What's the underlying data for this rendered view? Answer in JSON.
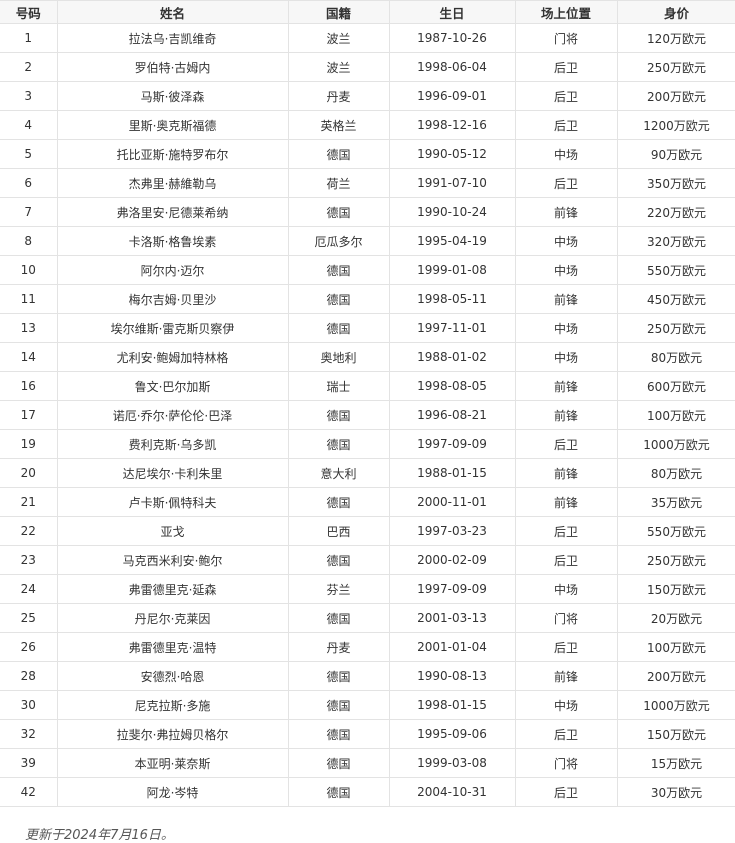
{
  "table": {
    "headers": [
      "号码",
      "姓名",
      "国籍",
      "生日",
      "场上位置",
      "身价"
    ],
    "rows": [
      [
        "1",
        "拉法乌·吉凯维奇",
        "波兰",
        "1987-10-26",
        "门将",
        "120万欧元"
      ],
      [
        "2",
        "罗伯特·古姆内",
        "波兰",
        "1998-06-04",
        "后卫",
        "250万欧元"
      ],
      [
        "3",
        "马斯·彼泽森",
        "丹麦",
        "1996-09-01",
        "后卫",
        "200万欧元"
      ],
      [
        "4",
        "里斯·奥克斯福德",
        "英格兰",
        "1998-12-16",
        "后卫",
        "1200万欧元"
      ],
      [
        "5",
        "托比亚斯·施特罗布尔",
        "德国",
        "1990-05-12",
        "中场",
        "90万欧元"
      ],
      [
        "6",
        "杰弗里·赫維勒乌",
        "荷兰",
        "1991-07-10",
        "后卫",
        "350万欧元"
      ],
      [
        "7",
        "弗洛里安·尼德莱希纳",
        "德国",
        "1990-10-24",
        "前锋",
        "220万欧元"
      ],
      [
        "8",
        "卡洛斯·格鲁埃素",
        "厄瓜多尔",
        "1995-04-19",
        "中场",
        "320万欧元"
      ],
      [
        "10",
        "阿尔内·迈尔",
        "德国",
        "1999-01-08",
        "中场",
        "550万欧元"
      ],
      [
        "11",
        "梅尔吉姆·贝里沙",
        "德国",
        "1998-05-11",
        "前锋",
        "450万欧元"
      ],
      [
        "13",
        "埃尔维斯·雷克斯贝察伊",
        "德国",
        "1997-11-01",
        "中场",
        "250万欧元"
      ],
      [
        "14",
        "尤利安·鲍姆加特林格",
        "奥地利",
        "1988-01-02",
        "中场",
        "80万欧元"
      ],
      [
        "16",
        "鲁文·巴尔加斯",
        "瑞士",
        "1998-08-05",
        "前锋",
        "600万欧元"
      ],
      [
        "17",
        "诺厄·乔尔·萨伦伦·巴泽",
        "德国",
        "1996-08-21",
        "前锋",
        "100万欧元"
      ],
      [
        "19",
        "费利克斯·乌多凯",
        "德国",
        "1997-09-09",
        "后卫",
        "1000万欧元"
      ],
      [
        "20",
        "达尼埃尔·卡利朱里",
        "意大利",
        "1988-01-15",
        "前锋",
        "80万欧元"
      ],
      [
        "21",
        "卢卡斯·佩特科夫",
        "德国",
        "2000-11-01",
        "前锋",
        "35万欧元"
      ],
      [
        "22",
        "亚戈",
        "巴西",
        "1997-03-23",
        "后卫",
        "550万欧元"
      ],
      [
        "23",
        "马克西米利安·鲍尔",
        "德国",
        "2000-02-09",
        "后卫",
        "250万欧元"
      ],
      [
        "24",
        "弗雷德里克·延森",
        "芬兰",
        "1997-09-09",
        "中场",
        "150万欧元"
      ],
      [
        "25",
        "丹尼尔·克莱因",
        "德国",
        "2001-03-13",
        "门将",
        "20万欧元"
      ],
      [
        "26",
        "弗雷德里克·温特",
        "丹麦",
        "2001-01-04",
        "后卫",
        "100万欧元"
      ],
      [
        "28",
        "安德烈·哈恩",
        "德国",
        "1990-08-13",
        "前锋",
        "200万欧元"
      ],
      [
        "30",
        "尼克拉斯·多施",
        "德国",
        "1998-01-15",
        "中场",
        "1000万欧元"
      ],
      [
        "32",
        "拉斐尔·弗拉姆贝格尔",
        "德国",
        "1995-09-06",
        "后卫",
        "150万欧元"
      ],
      [
        "39",
        "本亚明·莱奈斯",
        "德国",
        "1999-03-08",
        "门将",
        "15万欧元"
      ],
      [
        "42",
        "阿龙·岑特",
        "德国",
        "2004-10-31",
        "后卫",
        "30万欧元"
      ]
    ]
  },
  "footer": "更新于2024年7月16日。"
}
